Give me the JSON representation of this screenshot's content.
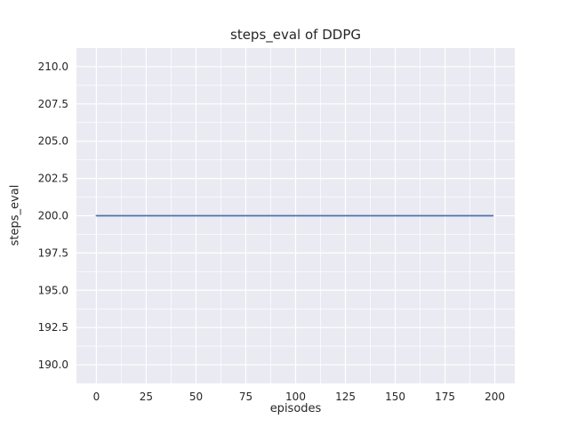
{
  "figure": {
    "title": "steps_eval of DDPG",
    "xlabel": "episodes",
    "ylabel": "steps_eval"
  },
  "chart_data": {
    "type": "line",
    "title": "steps_eval of DDPG",
    "xlabel": "episodes",
    "ylabel": "steps_eval",
    "xlim": [
      -10,
      210
    ],
    "ylim": [
      188.75,
      211.25
    ],
    "xticks": [
      0,
      25,
      50,
      75,
      100,
      125,
      150,
      175,
      200
    ],
    "xtick_labels": [
      "0",
      "25",
      "50",
      "75",
      "100",
      "125",
      "150",
      "175",
      "200"
    ],
    "yticks": [
      190.0,
      192.5,
      195.0,
      197.5,
      200.0,
      202.5,
      205.0,
      207.5,
      210.0
    ],
    "ytick_labels": [
      "190.0",
      "192.5",
      "195.0",
      "197.5",
      "200.0",
      "202.5",
      "205.0",
      "207.5",
      "210.0"
    ],
    "grid": {
      "major": true,
      "minor": true
    },
    "legend": false,
    "plot_bg_color": "#eaeaf2",
    "grid_color": "#ffffff",
    "tick_label_color": "#262626",
    "series": [
      {
        "name": "steps_eval",
        "color": "#4c72b0",
        "x": [
          0,
          199
        ],
        "y": [
          200,
          200
        ]
      }
    ]
  }
}
